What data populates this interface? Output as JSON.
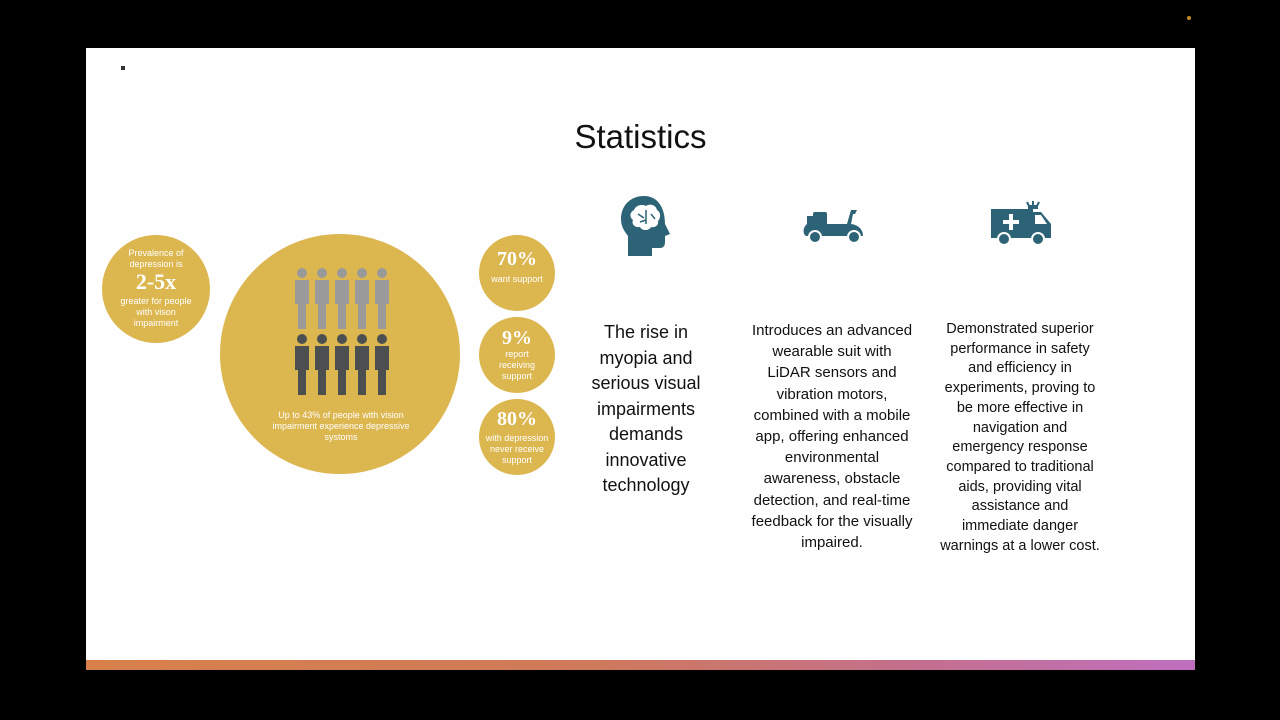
{
  "slide": {
    "title": "Statistics",
    "left_circle": {
      "line1": "Prevalence of depression is",
      "big": "2-5x",
      "line2": "greater for people with vison impairment"
    },
    "center_circle": {
      "caption": "Up to 43% of people with vision impairment experience depressive systoms"
    },
    "stat_circles": [
      {
        "value": "70%",
        "label": "want support"
      },
      {
        "value": "9%",
        "label": "report receiving support"
      },
      {
        "value": "80%",
        "label": "with depression never receive support"
      }
    ],
    "columns": [
      {
        "icon": "brain-head-icon",
        "text": "The rise in myopia and serious visual impairments demands innovative technology"
      },
      {
        "icon": "scooter-icon",
        "text": "Introduces an advanced wearable suit with LiDAR sensors and vibration motors, combined with a mobile app, offering enhanced environmental awareness, obstacle detection, and real-time feedback for the visually impaired."
      },
      {
        "icon": "ambulance-icon",
        "text": "Demonstrated superior performance in safety and efficiency in experiments, proving to be more effective in navigation and emergency response compared to traditional aids, providing vital assistance and immediate danger warnings at a lower cost."
      }
    ],
    "colors": {
      "gold": "#dcb64f",
      "icon_blue": "#2d6377",
      "figure_grey": "#9a9a9a",
      "figure_dark": "#4b4f4f"
    }
  }
}
